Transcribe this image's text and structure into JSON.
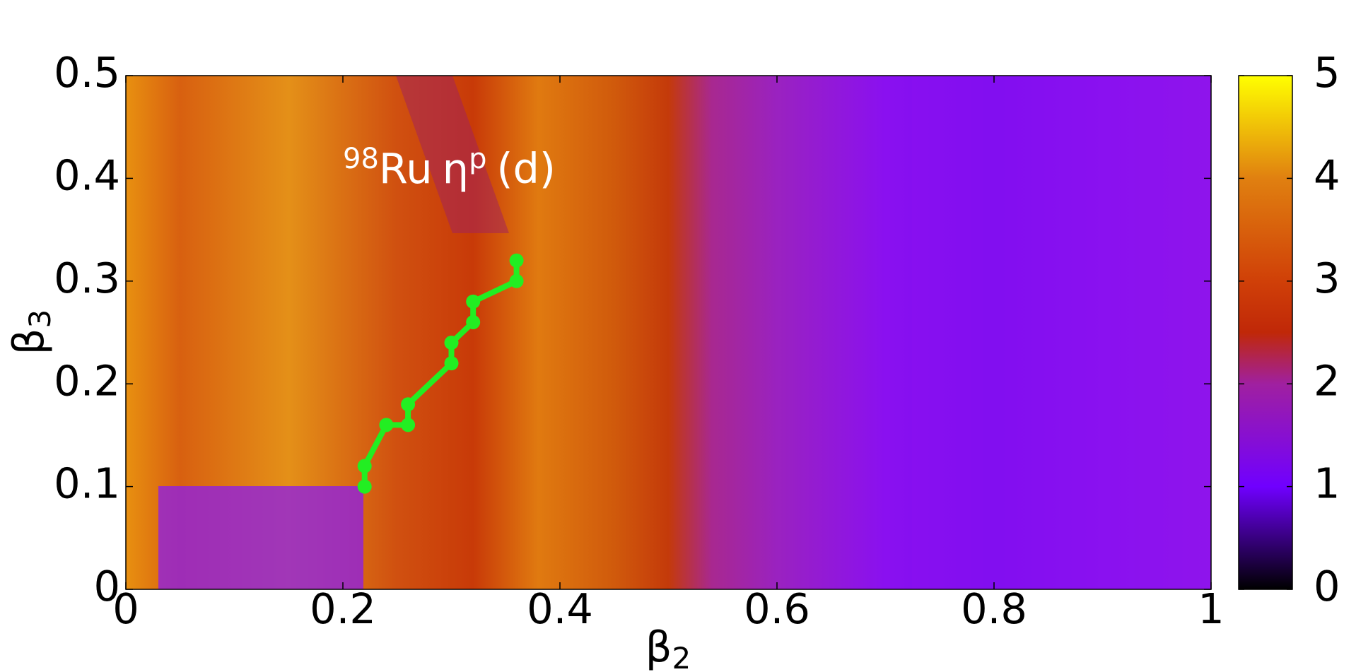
{
  "chart_data": {
    "type": "line",
    "annotation": {
      "mass": "98",
      "element": "Ru",
      "symbol": "η",
      "superscript": "p",
      "suffix": "(d)"
    },
    "xlabel": {
      "symbol": "β",
      "subscript": "2"
    },
    "ylabel": {
      "symbol": "β",
      "subscript": "3"
    },
    "xlim": [
      0,
      1
    ],
    "xticks": [
      0,
      0.2,
      0.4,
      0.6,
      0.8,
      1
    ],
    "ylim": [
      0,
      0.5
    ],
    "yticks": [
      0,
      0.1,
      0.2,
      0.3,
      0.4,
      0.5
    ],
    "colorbar": {
      "lim": [
        0,
        5
      ],
      "ticks": [
        0,
        1,
        2,
        3,
        4,
        5
      ]
    },
    "series": [
      {
        "color": "#22ee22",
        "x": [
          0.22,
          0.22,
          0.24,
          0.26,
          0.26,
          0.3,
          0.3,
          0.32,
          0.32,
          0.36,
          0.36
        ],
        "values": [
          0.1,
          0.12,
          0.16,
          0.16,
          0.18,
          0.22,
          0.24,
          0.26,
          0.28,
          0.3,
          0.32
        ]
      }
    ]
  }
}
